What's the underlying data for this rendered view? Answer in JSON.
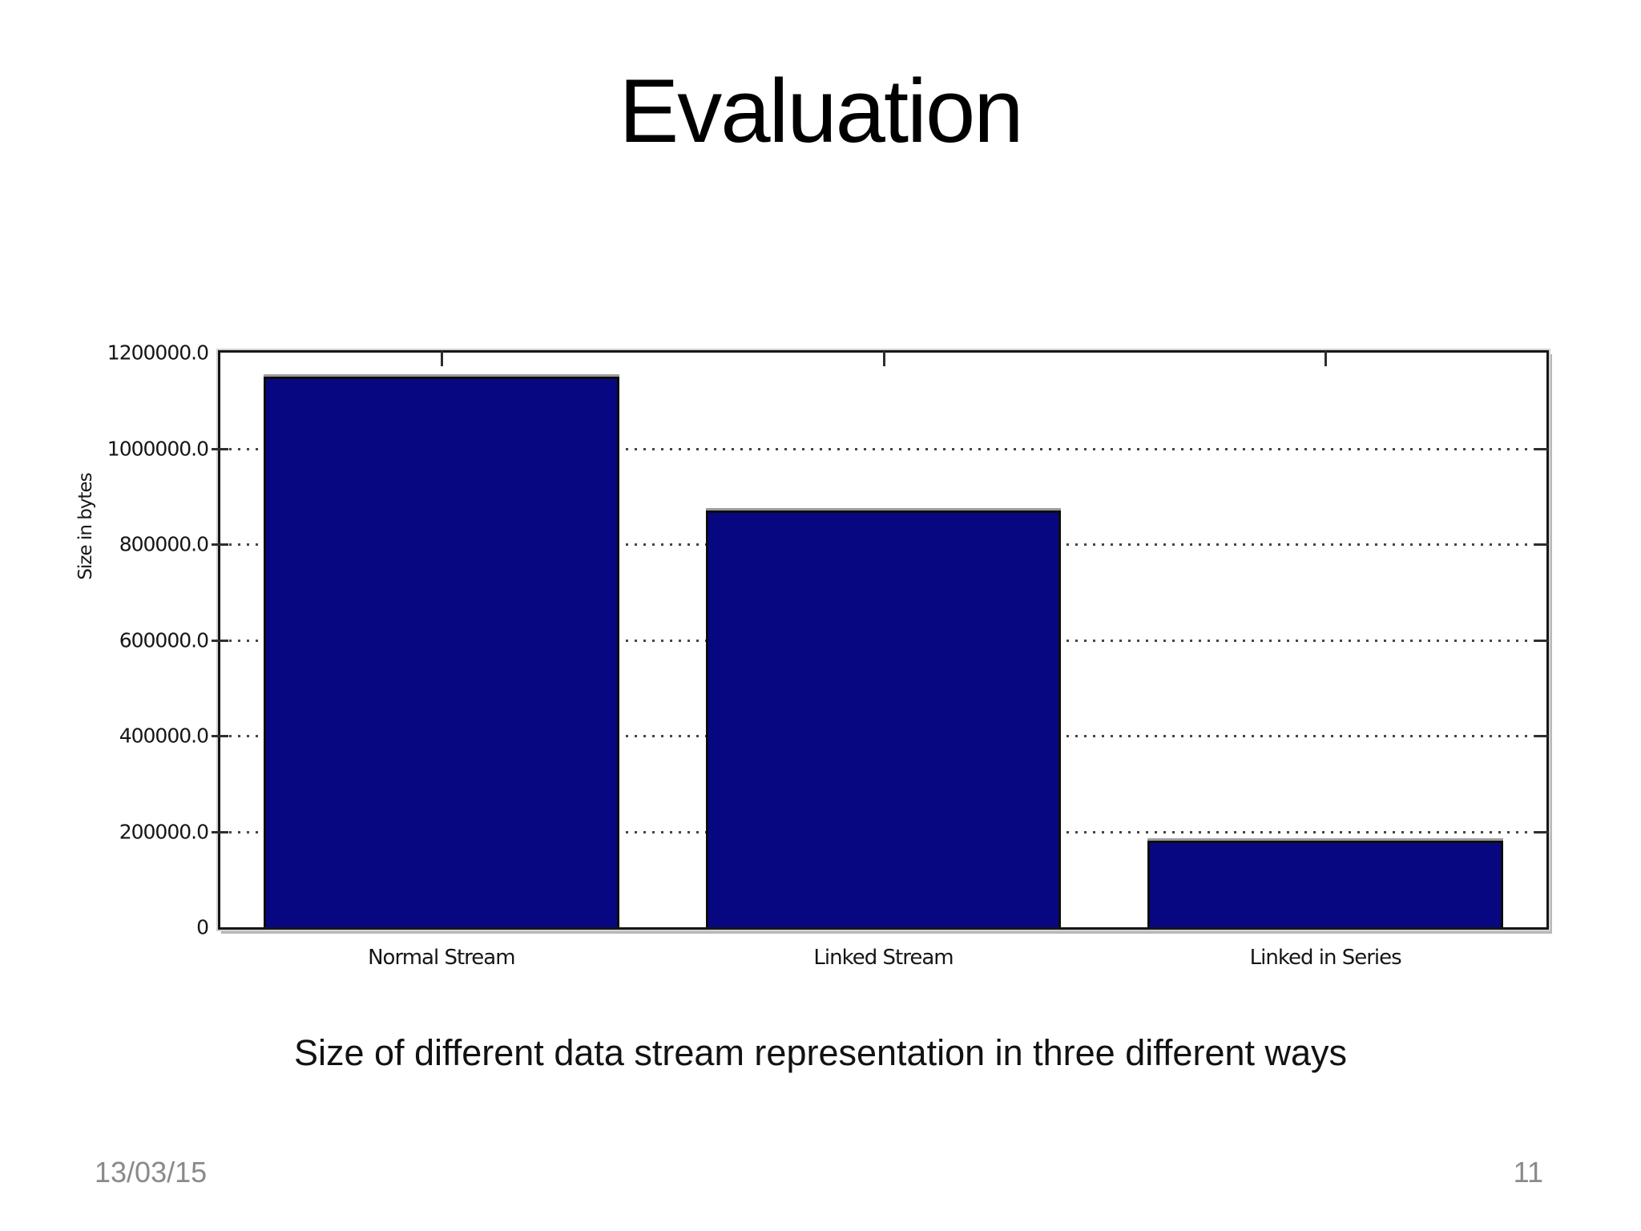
{
  "slide": {
    "title": "Evaluation",
    "caption": "Size of different data stream representation in three different ways",
    "footer": {
      "date": "13/03/15",
      "page": "11"
    }
  },
  "chart_data": {
    "type": "bar",
    "title": "",
    "categories": [
      "Normal Stream",
      "Linked Stream",
      "Linked in Series"
    ],
    "values": [
      1150000,
      870000,
      180000
    ],
    "xlabel": "",
    "ylabel": "Size in bytes",
    "ylim": [
      0,
      1200000
    ],
    "ytick_values": [
      0,
      200000,
      400000,
      600000,
      800000,
      1000000,
      1200000
    ],
    "ytick_labels": [
      "0",
      "200000.0",
      "400000.0",
      "600000.0",
      "800000.0",
      "1000000.0",
      "1200000.0"
    ],
    "grid": "horizontal-dotted",
    "legend_position": "none",
    "bar_color": "#070782",
    "bar_border_color": "#0c0c0c"
  }
}
